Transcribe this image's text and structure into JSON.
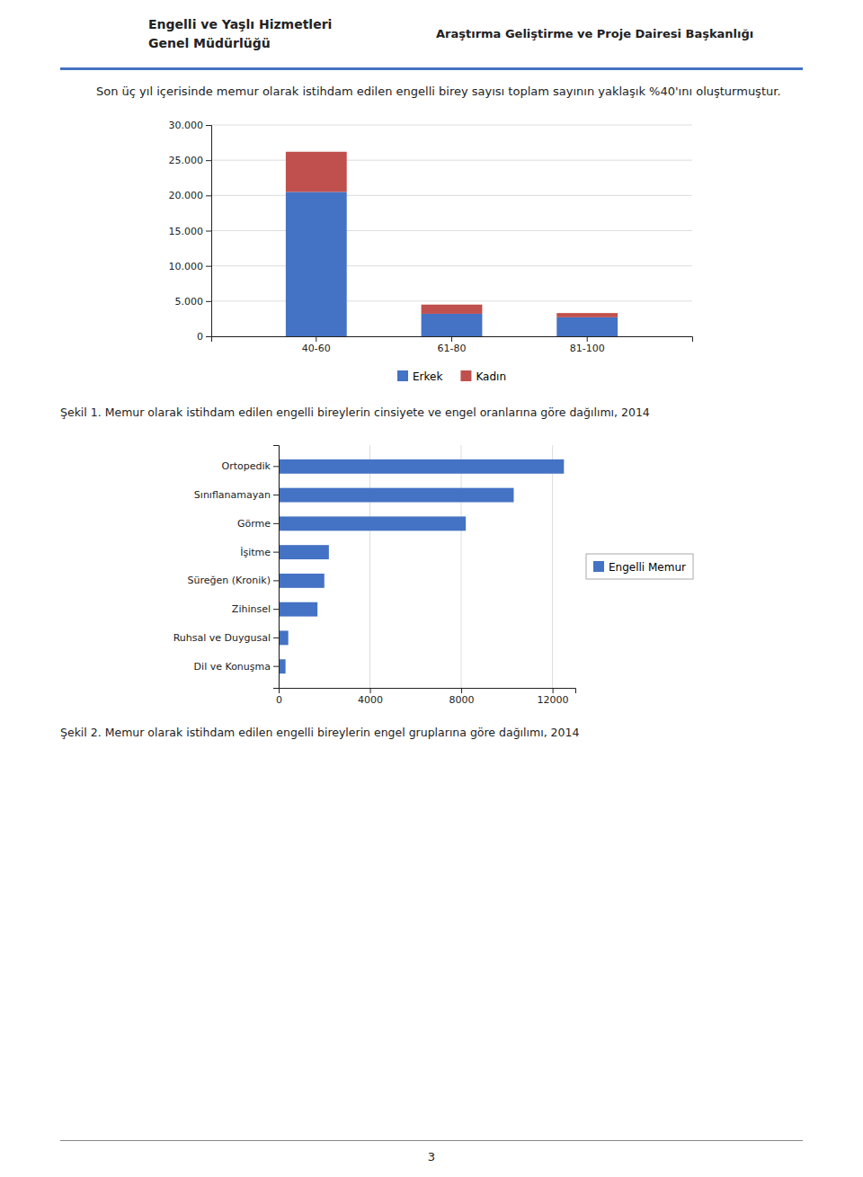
{
  "header_lines": [
    "Engelli ve Yaşlı Hizmetleri",
    "Genel Müdürlüğü"
  ],
  "header_title": "Araştırma Geliştirme ve Proje Dairesi Başkanlığı",
  "paragraph": "Son üç yıl içerisinde memur olarak istihdam edilen engelli birey sayısı toplam sayının yaklaşık %40'ını oluşturmuştur.",
  "page_number": "3",
  "chart_data": [
    {
      "type": "bar",
      "title": "Şekil 1. Memur olarak istihdam edilen engelli bireylerin cinsiyete ve engel oranlarına göre dağılımı, 2014",
      "categories": [
        "40-60",
        "61-80",
        "81-100"
      ],
      "series": [
        {
          "name": "Erkek",
          "color": "#4472C4",
          "values": [
            20500,
            3200,
            2700
          ]
        },
        {
          "name": "Kadın",
          "color": "#C0504D",
          "values": [
            5700,
            1300,
            600
          ]
        }
      ],
      "stacked": true,
      "ylim": [
        0,
        30000
      ],
      "yticks": [
        0,
        {
          "value": 5000,
          "label": "5.000"
        },
        {
          "value": 10000,
          "label": "10.000"
        },
        {
          "value": 15000,
          "label": "15.000"
        },
        {
          "value": 20000,
          "label": "20.000"
        },
        {
          "value": 25000,
          "label": "25.000"
        },
        {
          "value": 30000,
          "label": "30.000"
        }
      ],
      "grid": true,
      "legend": "bottom"
    },
    {
      "type": "bar",
      "title": "Şekil 2. Memur olarak istihdam edilen engelli bireylerin engel gruplarına göre dağılımı, 2014",
      "orientation": "horizontal",
      "categories": [
        "Dil ve Konuşma",
        "Ruhsal ve Duygusal",
        "Zihinsel",
        "Süreğen (Kronik)",
        "İşitme",
        "Görme",
        "Sınıflanamayan",
        "Ortopedik"
      ],
      "series": [
        {
          "name": "Engelli Memur",
          "color": "#4472C4",
          "values": [
            300,
            420,
            1700,
            2000,
            2200,
            8200,
            10300,
            12500
          ]
        }
      ],
      "xlim": [
        0,
        13000
      ],
      "xticks": [
        0,
        4000,
        8000,
        12000
      ],
      "grid": true,
      "legend": "right"
    }
  ]
}
